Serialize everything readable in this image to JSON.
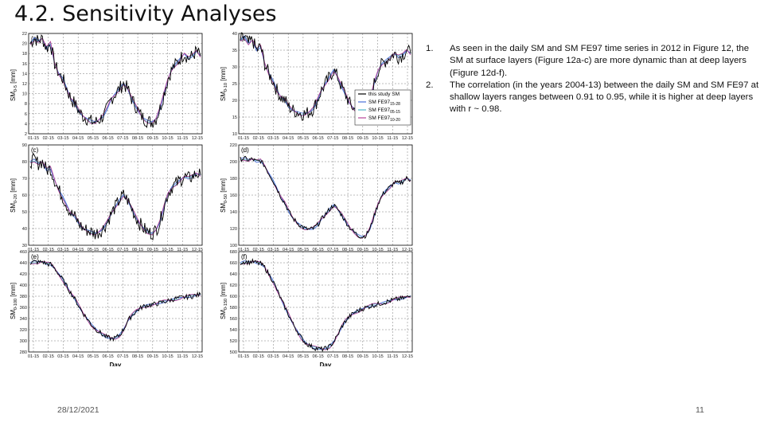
{
  "slide": {
    "title": "4.2. Sensitivity Analyses",
    "date": "28/12/2021",
    "page_number": "11"
  },
  "bullets": [
    {
      "num": "1.",
      "text": "As seen in the daily SM and SM FE97 time series in 2012 in Figure 12, the SM at surface layers (Figure 12a-c) are more dynamic than at deep layers (Figure 12d-f)."
    },
    {
      "num": "2.",
      "text": "The correlation (in the years 2004-13) between the daily SM and SM FE97 at shallow layers ranges between 0.91 to 0.95, while it is higher at deep layers with r ~ 0.98."
    }
  ],
  "colors": {
    "this_study": "#000000",
    "fe97_15_28": "#4a6fd8",
    "fe97_05_15": "#4fb8c8",
    "fe97_10_20": "#b8449a",
    "grid": "#555555"
  },
  "chart_data": {
    "type": "line",
    "x_axis_label": "Day",
    "x_ticks": [
      "01-15",
      "02-15",
      "03-15",
      "04-15",
      "05-15",
      "06-15",
      "07-15",
      "08-15",
      "09-15",
      "10-15",
      "11-15",
      "12-15"
    ],
    "legend": [
      {
        "name": "this study SM",
        "color_key": "this_study",
        "sub": ""
      },
      {
        "name": "SM FE97",
        "color_key": "fe97_15_28",
        "sub": "15-28"
      },
      {
        "name": "SM FE97",
        "color_key": "fe97_05_15",
        "sub": "05-15"
      },
      {
        "name": "SM FE97",
        "color_key": "fe97_10_20",
        "sub": "10-20"
      }
    ],
    "panels": [
      {
        "letter": "(a)",
        "ylabel_main": "SM",
        "ylabel_sub": "0-5",
        "ylabel_unit": " [mm]",
        "ylim": [
          2,
          22
        ],
        "yticks": [
          "22",
          "20",
          "18",
          "16",
          "14",
          "12",
          "10",
          "8",
          "6",
          "4",
          "2"
        ],
        "series": [
          20,
          21,
          20.5,
          21,
          19,
          20,
          16,
          14,
          13,
          11,
          9,
          8,
          6.5,
          5.5,
          5,
          4.5,
          4.3,
          4.8,
          5.5,
          7,
          9,
          10,
          11,
          12,
          11,
          9,
          7.5,
          6,
          5,
          4.5,
          4.3,
          5,
          7,
          10,
          13,
          15,
          16,
          17,
          18,
          17,
          17.5,
          18.5,
          17.5
        ]
      },
      {
        "letter": "(b)",
        "ylabel_main": "SM",
        "ylabel_sub": "0-10",
        "ylabel_unit": " [mm]",
        "ylim": [
          10,
          40
        ],
        "yticks": [
          "40",
          "35",
          "30",
          "25",
          "20",
          "15",
          "10"
        ],
        "series": [
          38,
          39,
          37,
          38,
          35,
          36,
          31,
          28,
          26,
          23,
          21,
          20,
          18,
          17,
          16.5,
          16,
          16,
          16.5,
          17.5,
          20,
          23,
          25,
          27,
          29,
          27,
          24,
          21.5,
          19,
          17.5,
          16.5,
          16,
          17,
          20,
          25,
          29,
          31,
          32,
          33,
          34,
          33,
          33.5,
          35,
          34
        ]
      },
      {
        "letter": "(c)",
        "ylabel_main": "SM",
        "ylabel_sub": "0-20",
        "ylabel_unit": " [mm]",
        "ylim": [
          30,
          90
        ],
        "yticks": [
          "90",
          "80",
          "70",
          "60",
          "50",
          "40",
          "30"
        ],
        "series": [
          80,
          81,
          79,
          80,
          75,
          76,
          69,
          63,
          59,
          54,
          49,
          47,
          43,
          40,
          39,
          38,
          37,
          38,
          40,
          44,
          49,
          53,
          57,
          60,
          57,
          52,
          47,
          43,
          40,
          38,
          37,
          39,
          44,
          53,
          61,
          65,
          67,
          69,
          71,
          70,
          71,
          73,
          72
        ]
      },
      {
        "letter": "(d)",
        "ylabel_main": "SM",
        "ylabel_sub": "0-50",
        "ylabel_unit": " [mm]",
        "ylim": [
          100,
          220
        ],
        "yticks": [
          "220",
          "200",
          "180",
          "160",
          "140",
          "120",
          "100"
        ],
        "series": [
          203,
          204,
          202,
          203,
          200,
          201,
          195,
          186,
          178,
          168,
          158,
          150,
          140,
          132,
          127,
          123,
          120,
          119,
          120,
          124,
          131,
          137,
          143,
          148,
          143,
          136,
          128,
          121,
          116,
          112,
          110,
          112,
          120,
          135,
          150,
          160,
          166,
          170,
          175,
          174,
          176,
          180,
          178
        ]
      },
      {
        "letter": "(e)",
        "ylabel_main": "SM",
        "ylabel_sub": "0-100",
        "ylabel_unit": " [mm]",
        "ylim": [
          280,
          460
        ],
        "yticks": [
          "460",
          "440",
          "420",
          "400",
          "380",
          "360",
          "340",
          "320",
          "300",
          "280"
        ],
        "series": [
          440,
          442,
          441,
          442,
          438,
          437,
          430,
          420,
          410,
          398,
          386,
          375,
          362,
          350,
          340,
          330,
          322,
          316,
          310,
          306,
          304,
          305,
          310,
          320,
          335,
          345,
          352,
          358,
          362,
          364,
          365,
          366,
          368,
          370,
          372,
          374,
          376,
          377,
          378,
          379,
          380,
          382,
          383
        ]
      },
      {
        "letter": "(f)",
        "ylabel_main": "SM",
        "ylabel_sub": "0-150",
        "ylabel_unit": " [mm]",
        "ylim": [
          500,
          680
        ],
        "yticks": [
          "680",
          "660",
          "640",
          "620",
          "600",
          "580",
          "560",
          "540",
          "520",
          "500"
        ],
        "series": [
          660,
          662,
          661,
          662,
          660,
          658,
          652,
          640,
          628,
          612,
          595,
          580,
          565,
          550,
          538,
          526,
          517,
          512,
          508,
          506,
          505,
          506,
          510,
          518,
          530,
          545,
          556,
          564,
          570,
          574,
          577,
          580,
          582,
          584,
          586,
          588,
          590,
          592,
          594,
          595,
          596,
          598,
          600
        ]
      }
    ]
  }
}
